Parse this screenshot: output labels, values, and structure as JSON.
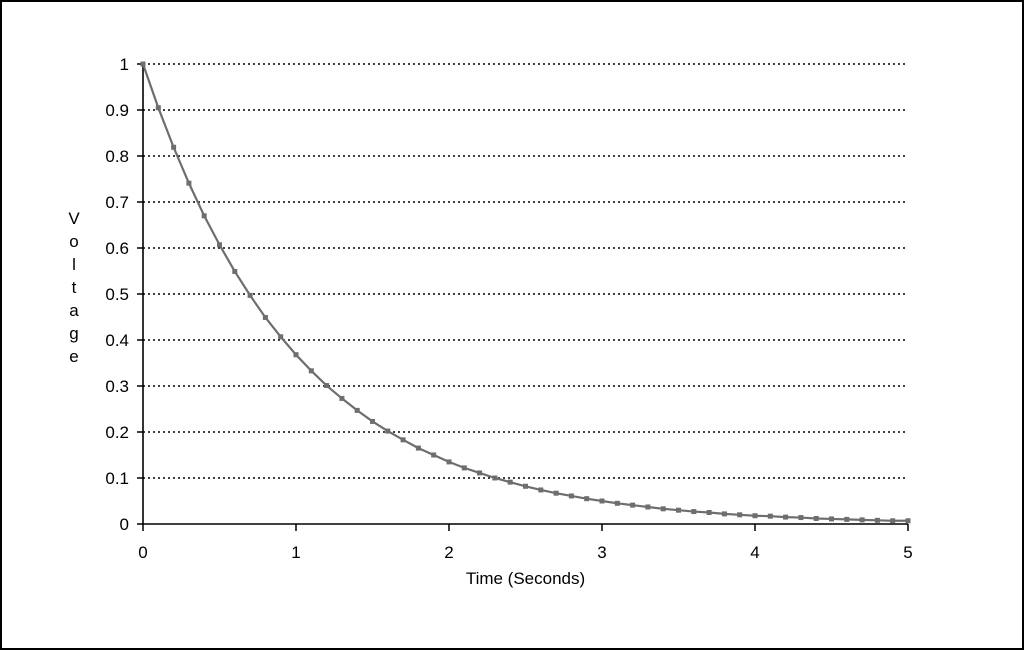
{
  "chart_data": {
    "type": "line",
    "title": "",
    "xlabel": "Time (Seconds)",
    "ylabel": "Voltage",
    "xlim": [
      0,
      5
    ],
    "ylim": [
      0,
      1
    ],
    "xticks": [
      "0",
      "1",
      "2",
      "3",
      "4",
      "5"
    ],
    "yticks": [
      "0",
      "0.1",
      "0.2",
      "0.3",
      "0.4",
      "0.5",
      "0.6",
      "0.7",
      "0.8",
      "0.9",
      "1"
    ],
    "grid": "horizontal-dotted",
    "line_color": "#6e6e6e",
    "series": [
      {
        "x": [
          0,
          0.1,
          0.2,
          0.3,
          0.4,
          0.5,
          0.6,
          0.7,
          0.8,
          0.9,
          1.0,
          1.1,
          1.2,
          1.3,
          1.4,
          1.5,
          1.6,
          1.7,
          1.8,
          1.9,
          2.0,
          2.1,
          2.2,
          2.3,
          2.4,
          2.5,
          2.6,
          2.7,
          2.8,
          2.9,
          3.0,
          3.1,
          3.2,
          3.3,
          3.4,
          3.5,
          3.6,
          3.7,
          3.8,
          3.9,
          4.0,
          4.1,
          4.2,
          4.3,
          4.4,
          4.5,
          4.6,
          4.7,
          4.8,
          4.9,
          5.0
        ],
        "values": [
          1.0,
          0.905,
          0.819,
          0.741,
          0.67,
          0.607,
          0.549,
          0.497,
          0.449,
          0.407,
          0.368,
          0.333,
          0.301,
          0.273,
          0.247,
          0.223,
          0.202,
          0.183,
          0.165,
          0.15,
          0.135,
          0.122,
          0.111,
          0.1,
          0.091,
          0.082,
          0.074,
          0.067,
          0.061,
          0.055,
          0.05,
          0.045,
          0.041,
          0.037,
          0.033,
          0.03,
          0.027,
          0.025,
          0.022,
          0.02,
          0.018,
          0.017,
          0.015,
          0.014,
          0.012,
          0.011,
          0.01,
          0.009,
          0.008,
          0.007,
          0.007
        ]
      }
    ]
  }
}
